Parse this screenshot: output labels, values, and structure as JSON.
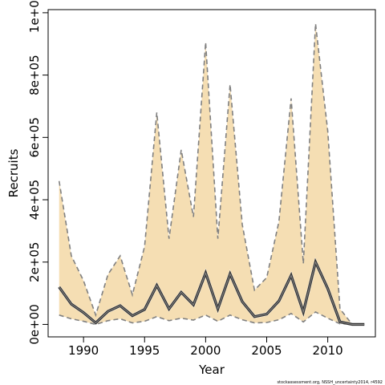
{
  "chart_data": {
    "type": "line",
    "xlabel": "Year",
    "ylabel": "Recruits",
    "xlim": [
      1987.1,
      2013.9
    ],
    "ylim": [
      -40000,
      1010000
    ],
    "x_ticks": [
      1990,
      1995,
      2000,
      2005,
      2010
    ],
    "y_ticks": [
      0,
      200000,
      400000,
      600000,
      800000,
      1000000
    ],
    "y_tick_labels": [
      "0e+00",
      "2e+05",
      "4e+05",
      "6e+05",
      "8e+05",
      "1e+06"
    ],
    "x_tick_labels": [
      "1990",
      "1995",
      "2000",
      "2005",
      "2010"
    ],
    "grid": false,
    "band_color": "#f5deb3",
    "median_color": "#555555",
    "bound_color": "#808080",
    "x": [
      1988,
      1989,
      1990,
      1991,
      1992,
      1993,
      1994,
      1995,
      1996,
      1997,
      1998,
      1999,
      2000,
      2001,
      2002,
      2003,
      2004,
      2005,
      2006,
      2007,
      2008,
      2009,
      2010,
      2011,
      2012,
      2013
    ],
    "series": [
      {
        "values": [
          120000,
          65000,
          38000,
          5000,
          42000,
          60000,
          28000,
          48000,
          125000,
          50000,
          103000,
          63000,
          165000,
          50000,
          162000,
          73000,
          25000,
          33000,
          75000,
          157000,
          40000,
          200000,
          115000,
          8000,
          0,
          0
        ]
      },
      {
        "values": [
          460000,
          220000,
          140000,
          30000,
          160000,
          220000,
          95000,
          250000,
          680000,
          275000,
          560000,
          345000,
          905000,
          275000,
          770000,
          320000,
          110000,
          150000,
          330000,
          725000,
          195000,
          965000,
          620000,
          50000,
          0,
          0
        ]
      },
      {
        "values": [
          30000,
          18000,
          10000,
          0,
          12000,
          18000,
          5000,
          10000,
          25000,
          12000,
          20000,
          14000,
          30000,
          10000,
          30000,
          15000,
          5000,
          6000,
          15000,
          35000,
          8000,
          40000,
          20000,
          2000,
          0,
          0
        ]
      }
    ],
    "footnote": "stockassessment.org, NSSH_uncertainty2014, r4592"
  }
}
